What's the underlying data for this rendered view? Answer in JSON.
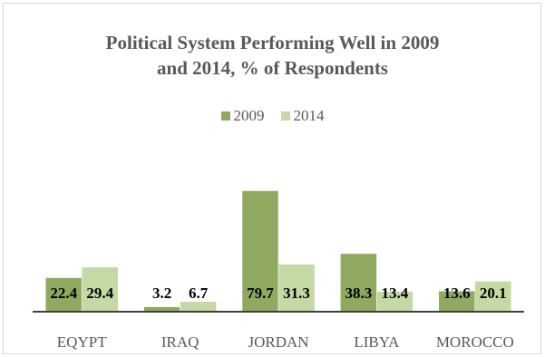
{
  "chart_data": {
    "type": "bar",
    "title_line1": "Political System Performing Well in 2009",
    "title_line2": "and 2014, % of Respondents",
    "categories": [
      "EQYPT",
      "IRAQ",
      "JORDAN",
      "LIBYA",
      "MOROCCO"
    ],
    "series": [
      {
        "name": "2009",
        "values": [
          22.4,
          3.2,
          79.7,
          38.3,
          13.6
        ],
        "color": "#8faa60"
      },
      {
        "name": "2014",
        "values": [
          29.4,
          6.7,
          31.3,
          13.4,
          20.1
        ],
        "color": "#c4d9a3"
      }
    ],
    "ylim": [
      0,
      80
    ],
    "grid": false,
    "legend_position": "top-center",
    "data_labels": true
  }
}
